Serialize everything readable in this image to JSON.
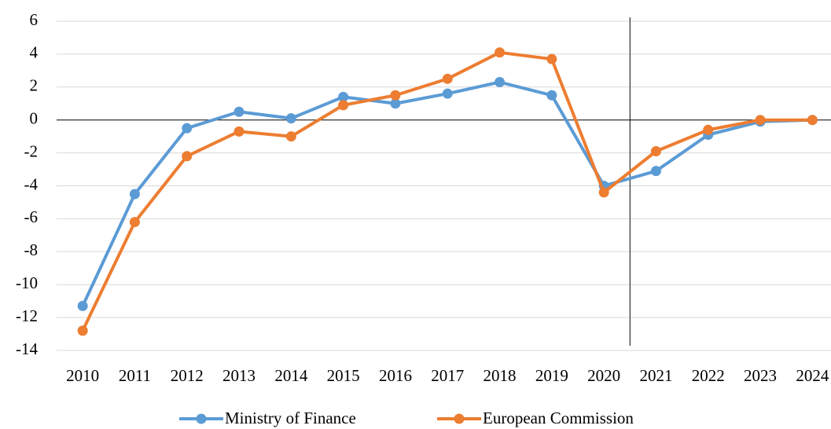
{
  "chart_data": {
    "type": "line",
    "categories": [
      "2010",
      "2011",
      "2012",
      "2013",
      "2014",
      "2015",
      "2016",
      "2017",
      "2018",
      "2019",
      "2020",
      "2021",
      "2022",
      "2023",
      "2024"
    ],
    "series": [
      {
        "name": "Ministry of Finance",
        "color": "#5b9bd5",
        "values": [
          -11.3,
          -4.5,
          -0.5,
          0.5,
          0.1,
          1.4,
          1.0,
          1.6,
          2.3,
          1.5,
          -4.0,
          -3.1,
          -0.9,
          -0.1,
          0
        ]
      },
      {
        "name": "European Commission",
        "color": "#ed7d31",
        "values": [
          -12.8,
          -6.2,
          -2.2,
          -0.7,
          -1.0,
          0.9,
          1.5,
          2.5,
          4.1,
          3.7,
          -4.4,
          -1.9,
          -0.6,
          0,
          0
        ]
      }
    ],
    "ylim": [
      -14,
      6
    ],
    "yticks": [
      -14,
      -12,
      -10,
      -8,
      -6,
      -4,
      -2,
      0,
      2,
      4,
      6
    ],
    "grid": true,
    "legend": "bottom"
  }
}
